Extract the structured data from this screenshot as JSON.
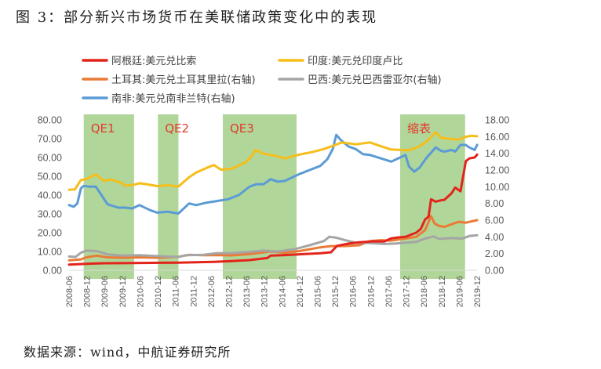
{
  "figure": {
    "title": "图 3：部分新兴市场货币在美联储政策变化中的表现",
    "source": "数据来源：wind，中航证券研究所"
  },
  "colors": {
    "argentina": "#e3241b",
    "india": "#f5be1a",
    "turkey": "#ea7a35",
    "brazil": "#a5a5a5",
    "south_africa": "#5b9bd5",
    "band": "#a9d18e",
    "band_label": "#e23b2c",
    "axis_text": "#595959"
  },
  "chart_data": {
    "type": "line",
    "title": "",
    "xlabel": "",
    "ylabel_left": "",
    "ylabel_right": "",
    "y_left": {
      "lim": [
        0,
        80
      ],
      "ticks": [
        "0.00",
        "10.00",
        "20.00",
        "30.00",
        "40.00",
        "50.00",
        "60.00",
        "70.00",
        "80.00"
      ]
    },
    "y_right": {
      "lim": [
        0,
        18
      ],
      "ticks": [
        "0.00",
        "2.00",
        "4.00",
        "6.00",
        "8.00",
        "10.00",
        "12.00",
        "14.00",
        "16.00",
        "18.00"
      ]
    },
    "x_range": [
      2008.4167,
      2019.9167
    ],
    "x_ticks": [
      {
        "label": "2008-06",
        "t": 2008.4167
      },
      {
        "label": "2008-12",
        "t": 2008.9167
      },
      {
        "label": "2009-06",
        "t": 2009.4167
      },
      {
        "label": "2009-12",
        "t": 2009.9167
      },
      {
        "label": "2010-06",
        "t": 2010.4167
      },
      {
        "label": "2010-12",
        "t": 2010.9167
      },
      {
        "label": "2011-06",
        "t": 2011.4167
      },
      {
        "label": "2011-12",
        "t": 2011.9167
      },
      {
        "label": "2012-06",
        "t": 2012.4167
      },
      {
        "label": "2012-12",
        "t": 2012.9167
      },
      {
        "label": "2013-06",
        "t": 2013.4167
      },
      {
        "label": "2013-12",
        "t": 2013.9167
      },
      {
        "label": "2014-06",
        "t": 2014.4167
      },
      {
        "label": "2014-12",
        "t": 2014.9167
      },
      {
        "label": "2015-06",
        "t": 2015.4167
      },
      {
        "label": "2015-12",
        "t": 2015.9167
      },
      {
        "label": "2016-06",
        "t": 2016.4167
      },
      {
        "label": "2016-12",
        "t": 2016.9167
      },
      {
        "label": "2017-06",
        "t": 2017.4167
      },
      {
        "label": "2017-12",
        "t": 2017.9167
      },
      {
        "label": "2018-06",
        "t": 2018.4167
      },
      {
        "label": "2018-12",
        "t": 2018.9167
      },
      {
        "label": "2019-06",
        "t": 2019.4167
      },
      {
        "label": "2019-12",
        "t": 2019.9167
      }
    ],
    "bands": [
      {
        "label": "QE1",
        "start": 2008.83,
        "end": 2010.25
      },
      {
        "label": "QE2",
        "start": 2010.92,
        "end": 2011.5
      },
      {
        "label": "QE3",
        "start": 2012.75,
        "end": 2014.83
      },
      {
        "label": "缩表",
        "start": 2017.75,
        "end": 2019.58
      }
    ],
    "legend": {
      "placement": "top"
    },
    "series": [
      {
        "key": "argentina",
        "name": "阿根廷:美元兑比索",
        "axis": "left",
        "points": [
          [
            2008.42,
            3.0
          ],
          [
            2008.9,
            3.4
          ],
          [
            2009.4,
            3.75
          ],
          [
            2009.9,
            3.8
          ],
          [
            2010.5,
            3.93
          ],
          [
            2011.0,
            4.0
          ],
          [
            2011.5,
            4.1
          ],
          [
            2012.0,
            4.3
          ],
          [
            2012.5,
            4.5
          ],
          [
            2013.0,
            4.9
          ],
          [
            2013.5,
            5.4
          ],
          [
            2014.0,
            6.5
          ],
          [
            2014.1,
            7.8
          ],
          [
            2014.5,
            8.1
          ],
          [
            2015.0,
            8.6
          ],
          [
            2015.5,
            9.1
          ],
          [
            2015.8,
            9.6
          ],
          [
            2015.97,
            13.0
          ],
          [
            2016.3,
            14.2
          ],
          [
            2016.6,
            14.9
          ],
          [
            2017.0,
            15.4
          ],
          [
            2017.3,
            15.3
          ],
          [
            2017.5,
            17.0
          ],
          [
            2017.7,
            17.5
          ],
          [
            2017.9,
            17.8
          ],
          [
            2018.2,
            20.0
          ],
          [
            2018.33,
            22.0
          ],
          [
            2018.45,
            27.0
          ],
          [
            2018.55,
            28.5
          ],
          [
            2018.62,
            37.8
          ],
          [
            2018.75,
            36.5
          ],
          [
            2018.9,
            37.2
          ],
          [
            2019.0,
            37.5
          ],
          [
            2019.2,
            41.0
          ],
          [
            2019.3,
            44.0
          ],
          [
            2019.45,
            42.0
          ],
          [
            2019.6,
            58.0
          ],
          [
            2019.7,
            59.5
          ],
          [
            2019.85,
            60.0
          ],
          [
            2019.92,
            61.5
          ]
        ]
      },
      {
        "key": "india",
        "name": "印度:美元兑印度卢比",
        "axis": "left",
        "points": [
          [
            2008.42,
            42.8
          ],
          [
            2008.58,
            43.0
          ],
          [
            2008.75,
            48.0
          ],
          [
            2008.9,
            48.5
          ],
          [
            2009.17,
            51.0
          ],
          [
            2009.4,
            47.5
          ],
          [
            2009.6,
            48.3
          ],
          [
            2009.9,
            46.5
          ],
          [
            2010.0,
            45.0
          ],
          [
            2010.2,
            45.3
          ],
          [
            2010.4,
            46.3
          ],
          [
            2010.6,
            45.8
          ],
          [
            2010.9,
            44.8
          ],
          [
            2011.2,
            45.2
          ],
          [
            2011.5,
            44.6
          ],
          [
            2011.8,
            49.5
          ],
          [
            2012.0,
            52.0
          ],
          [
            2012.3,
            54.5
          ],
          [
            2012.5,
            56.0
          ],
          [
            2012.7,
            53.5
          ],
          [
            2013.0,
            54.0
          ],
          [
            2013.4,
            57.5
          ],
          [
            2013.58,
            61.0
          ],
          [
            2013.67,
            64.0
          ],
          [
            2013.9,
            62.0
          ],
          [
            2014.2,
            61.0
          ],
          [
            2014.5,
            59.5
          ],
          [
            2014.9,
            61.5
          ],
          [
            2015.3,
            63.0
          ],
          [
            2015.6,
            64.5
          ],
          [
            2015.9,
            66.5
          ],
          [
            2016.1,
            68.0
          ],
          [
            2016.5,
            67.0
          ],
          [
            2016.9,
            68.0
          ],
          [
            2017.2,
            66.0
          ],
          [
            2017.5,
            64.2
          ],
          [
            2017.8,
            64.0
          ],
          [
            2018.0,
            63.8
          ],
          [
            2018.3,
            66.0
          ],
          [
            2018.5,
            68.5
          ],
          [
            2018.6,
            70.5
          ],
          [
            2018.75,
            73.5
          ],
          [
            2018.9,
            70.5
          ],
          [
            2019.1,
            70.0
          ],
          [
            2019.4,
            69.5
          ],
          [
            2019.6,
            71.0
          ],
          [
            2019.75,
            71.5
          ],
          [
            2019.92,
            71.3
          ]
        ]
      },
      {
        "key": "turkey",
        "name": "土耳其:美元兑土耳其里拉(右轴)",
        "axis": "right",
        "points": [
          [
            2008.42,
            1.2
          ],
          [
            2008.75,
            1.3
          ],
          [
            2008.9,
            1.55
          ],
          [
            2009.2,
            1.75
          ],
          [
            2009.5,
            1.55
          ],
          [
            2009.9,
            1.5
          ],
          [
            2010.4,
            1.55
          ],
          [
            2010.9,
            1.5
          ],
          [
            2011.5,
            1.62
          ],
          [
            2011.8,
            1.85
          ],
          [
            2012.2,
            1.8
          ],
          [
            2012.7,
            1.8
          ],
          [
            2013.0,
            1.78
          ],
          [
            2013.5,
            1.95
          ],
          [
            2013.9,
            2.15
          ],
          [
            2014.1,
            2.25
          ],
          [
            2014.5,
            2.1
          ],
          [
            2014.9,
            2.3
          ],
          [
            2015.5,
            2.75
          ],
          [
            2015.8,
            2.9
          ],
          [
            2016.2,
            2.9
          ],
          [
            2016.6,
            3.0
          ],
          [
            2016.9,
            3.5
          ],
          [
            2017.2,
            3.6
          ],
          [
            2017.5,
            3.55
          ],
          [
            2017.9,
            3.8
          ],
          [
            2018.2,
            4.0
          ],
          [
            2018.45,
            4.8
          ],
          [
            2018.62,
            6.5
          ],
          [
            2018.72,
            5.6
          ],
          [
            2018.85,
            5.3
          ],
          [
            2019.0,
            5.2
          ],
          [
            2019.4,
            5.8
          ],
          [
            2019.6,
            5.7
          ],
          [
            2019.92,
            6.0
          ]
        ]
      },
      {
        "key": "brazil",
        "name": "巴西:美元兑巴西雷亚尔(右轴)",
        "axis": "right",
        "points": [
          [
            2008.42,
            1.65
          ],
          [
            2008.6,
            1.6
          ],
          [
            2008.75,
            2.1
          ],
          [
            2008.9,
            2.35
          ],
          [
            2009.2,
            2.3
          ],
          [
            2009.5,
            1.9
          ],
          [
            2009.9,
            1.75
          ],
          [
            2010.4,
            1.8
          ],
          [
            2010.9,
            1.7
          ],
          [
            2011.5,
            1.58
          ],
          [
            2011.7,
            1.8
          ],
          [
            2012.2,
            1.85
          ],
          [
            2012.6,
            2.05
          ],
          [
            2013.0,
            2.05
          ],
          [
            2013.5,
            2.2
          ],
          [
            2013.9,
            2.35
          ],
          [
            2014.3,
            2.25
          ],
          [
            2014.8,
            2.55
          ],
          [
            2015.2,
            3.0
          ],
          [
            2015.6,
            3.5
          ],
          [
            2015.75,
            4.0
          ],
          [
            2015.95,
            3.9
          ],
          [
            2016.2,
            3.6
          ],
          [
            2016.5,
            3.3
          ],
          [
            2016.9,
            3.25
          ],
          [
            2017.3,
            3.15
          ],
          [
            2017.6,
            3.2
          ],
          [
            2017.9,
            3.3
          ],
          [
            2018.2,
            3.4
          ],
          [
            2018.5,
            3.85
          ],
          [
            2018.7,
            4.05
          ],
          [
            2018.85,
            3.75
          ],
          [
            2019.2,
            3.85
          ],
          [
            2019.5,
            3.8
          ],
          [
            2019.7,
            4.1
          ],
          [
            2019.92,
            4.2
          ]
        ]
      },
      {
        "key": "south_africa",
        "name": "南非:美元兑南非兰特(右轴)",
        "axis": "right",
        "points": [
          [
            2008.42,
            7.8
          ],
          [
            2008.55,
            7.6
          ],
          [
            2008.65,
            8.0
          ],
          [
            2008.75,
            9.8
          ],
          [
            2008.83,
            10.1
          ],
          [
            2009.0,
            10.0
          ],
          [
            2009.17,
            10.0
          ],
          [
            2009.3,
            9.2
          ],
          [
            2009.5,
            7.9
          ],
          [
            2009.8,
            7.5
          ],
          [
            2010.0,
            7.5
          ],
          [
            2010.2,
            7.4
          ],
          [
            2010.4,
            7.8
          ],
          [
            2010.7,
            7.2
          ],
          [
            2010.9,
            6.9
          ],
          [
            2011.2,
            7.0
          ],
          [
            2011.5,
            6.8
          ],
          [
            2011.8,
            8.0
          ],
          [
            2012.0,
            7.8
          ],
          [
            2012.3,
            8.1
          ],
          [
            2012.6,
            8.3
          ],
          [
            2012.9,
            8.5
          ],
          [
            2013.2,
            9.0
          ],
          [
            2013.5,
            10.0
          ],
          [
            2013.7,
            10.3
          ],
          [
            2013.9,
            10.3
          ],
          [
            2014.1,
            10.9
          ],
          [
            2014.3,
            10.6
          ],
          [
            2014.5,
            10.7
          ],
          [
            2014.9,
            11.5
          ],
          [
            2015.2,
            12.0
          ],
          [
            2015.5,
            12.5
          ],
          [
            2015.7,
            13.3
          ],
          [
            2015.85,
            14.5
          ],
          [
            2015.95,
            16.2
          ],
          [
            2016.1,
            15.5
          ],
          [
            2016.3,
            14.8
          ],
          [
            2016.5,
            14.5
          ],
          [
            2016.7,
            13.9
          ],
          [
            2016.9,
            13.8
          ],
          [
            2017.2,
            13.4
          ],
          [
            2017.5,
            13.0
          ],
          [
            2017.75,
            13.5
          ],
          [
            2017.9,
            13.8
          ],
          [
            2018.0,
            12.4
          ],
          [
            2018.15,
            11.8
          ],
          [
            2018.3,
            12.3
          ],
          [
            2018.5,
            13.5
          ],
          [
            2018.65,
            14.2
          ],
          [
            2018.75,
            14.7
          ],
          [
            2018.9,
            14.3
          ],
          [
            2019.0,
            14.2
          ],
          [
            2019.2,
            14.4
          ],
          [
            2019.3,
            14.2
          ],
          [
            2019.45,
            15.0
          ],
          [
            2019.6,
            15.0
          ],
          [
            2019.7,
            14.7
          ],
          [
            2019.85,
            14.4
          ],
          [
            2019.92,
            15.0
          ]
        ]
      }
    ]
  }
}
